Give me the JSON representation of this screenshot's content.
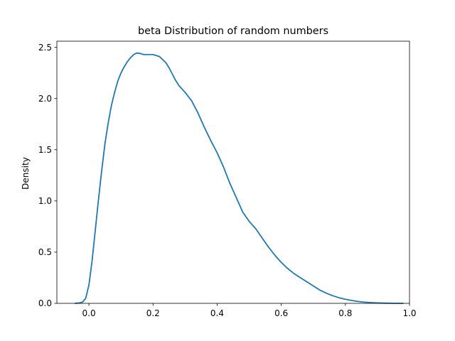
{
  "chart_data": {
    "type": "line",
    "title": "beta Distribution of random numbers",
    "xlabel": "",
    "ylabel": "Density",
    "xlim": [
      -0.1,
      1.0
    ],
    "ylim": [
      0,
      2.56
    ],
    "grid": false,
    "xticks": [
      {
        "value": 0.0,
        "label": "0.0"
      },
      {
        "value": 0.2,
        "label": "0.2"
      },
      {
        "value": 0.4,
        "label": "0.4"
      },
      {
        "value": 0.6,
        "label": "0.6"
      },
      {
        "value": 0.8,
        "label": "0.8"
      },
      {
        "value": 1.0,
        "label": "1.0"
      }
    ],
    "yticks": [
      {
        "value": 0.0,
        "label": "0.0"
      },
      {
        "value": 0.5,
        "label": "0.5"
      },
      {
        "value": 1.0,
        "label": "1.0"
      },
      {
        "value": 1.5,
        "label": "1.5"
      },
      {
        "value": 2.0,
        "label": "2.0"
      },
      {
        "value": 2.5,
        "label": "2.5"
      }
    ],
    "series": [
      {
        "color": "#1f77b4",
        "x": [
          -0.043,
          -0.03,
          -0.02,
          -0.01,
          0.0,
          0.01,
          0.02,
          0.03,
          0.04,
          0.05,
          0.06,
          0.07,
          0.08,
          0.09,
          0.1,
          0.11,
          0.12,
          0.13,
          0.14,
          0.15,
          0.16,
          0.17,
          0.18,
          0.19,
          0.2,
          0.22,
          0.24,
          0.25,
          0.26,
          0.27,
          0.28,
          0.3,
          0.32,
          0.34,
          0.36,
          0.38,
          0.4,
          0.42,
          0.44,
          0.46,
          0.48,
          0.5,
          0.52,
          0.54,
          0.56,
          0.58,
          0.6,
          0.62,
          0.64,
          0.66,
          0.68,
          0.7,
          0.72,
          0.74,
          0.76,
          0.78,
          0.8,
          0.82,
          0.84,
          0.86,
          0.88,
          0.9,
          0.92,
          0.94,
          0.96,
          0.98
        ],
        "y": [
          0.0,
          0.004,
          0.012,
          0.05,
          0.18,
          0.42,
          0.72,
          1.02,
          1.3,
          1.56,
          1.76,
          1.93,
          2.06,
          2.17,
          2.25,
          2.31,
          2.36,
          2.4,
          2.43,
          2.445,
          2.44,
          2.43,
          2.43,
          2.43,
          2.43,
          2.41,
          2.35,
          2.3,
          2.24,
          2.18,
          2.13,
          2.06,
          1.98,
          1.86,
          1.72,
          1.59,
          1.47,
          1.33,
          1.17,
          1.03,
          0.89,
          0.8,
          0.73,
          0.64,
          0.55,
          0.47,
          0.4,
          0.34,
          0.29,
          0.25,
          0.21,
          0.17,
          0.13,
          0.1,
          0.075,
          0.055,
          0.04,
          0.028,
          0.018,
          0.011,
          0.007,
          0.004,
          0.002,
          0.001,
          0.0,
          0.0
        ]
      }
    ]
  }
}
